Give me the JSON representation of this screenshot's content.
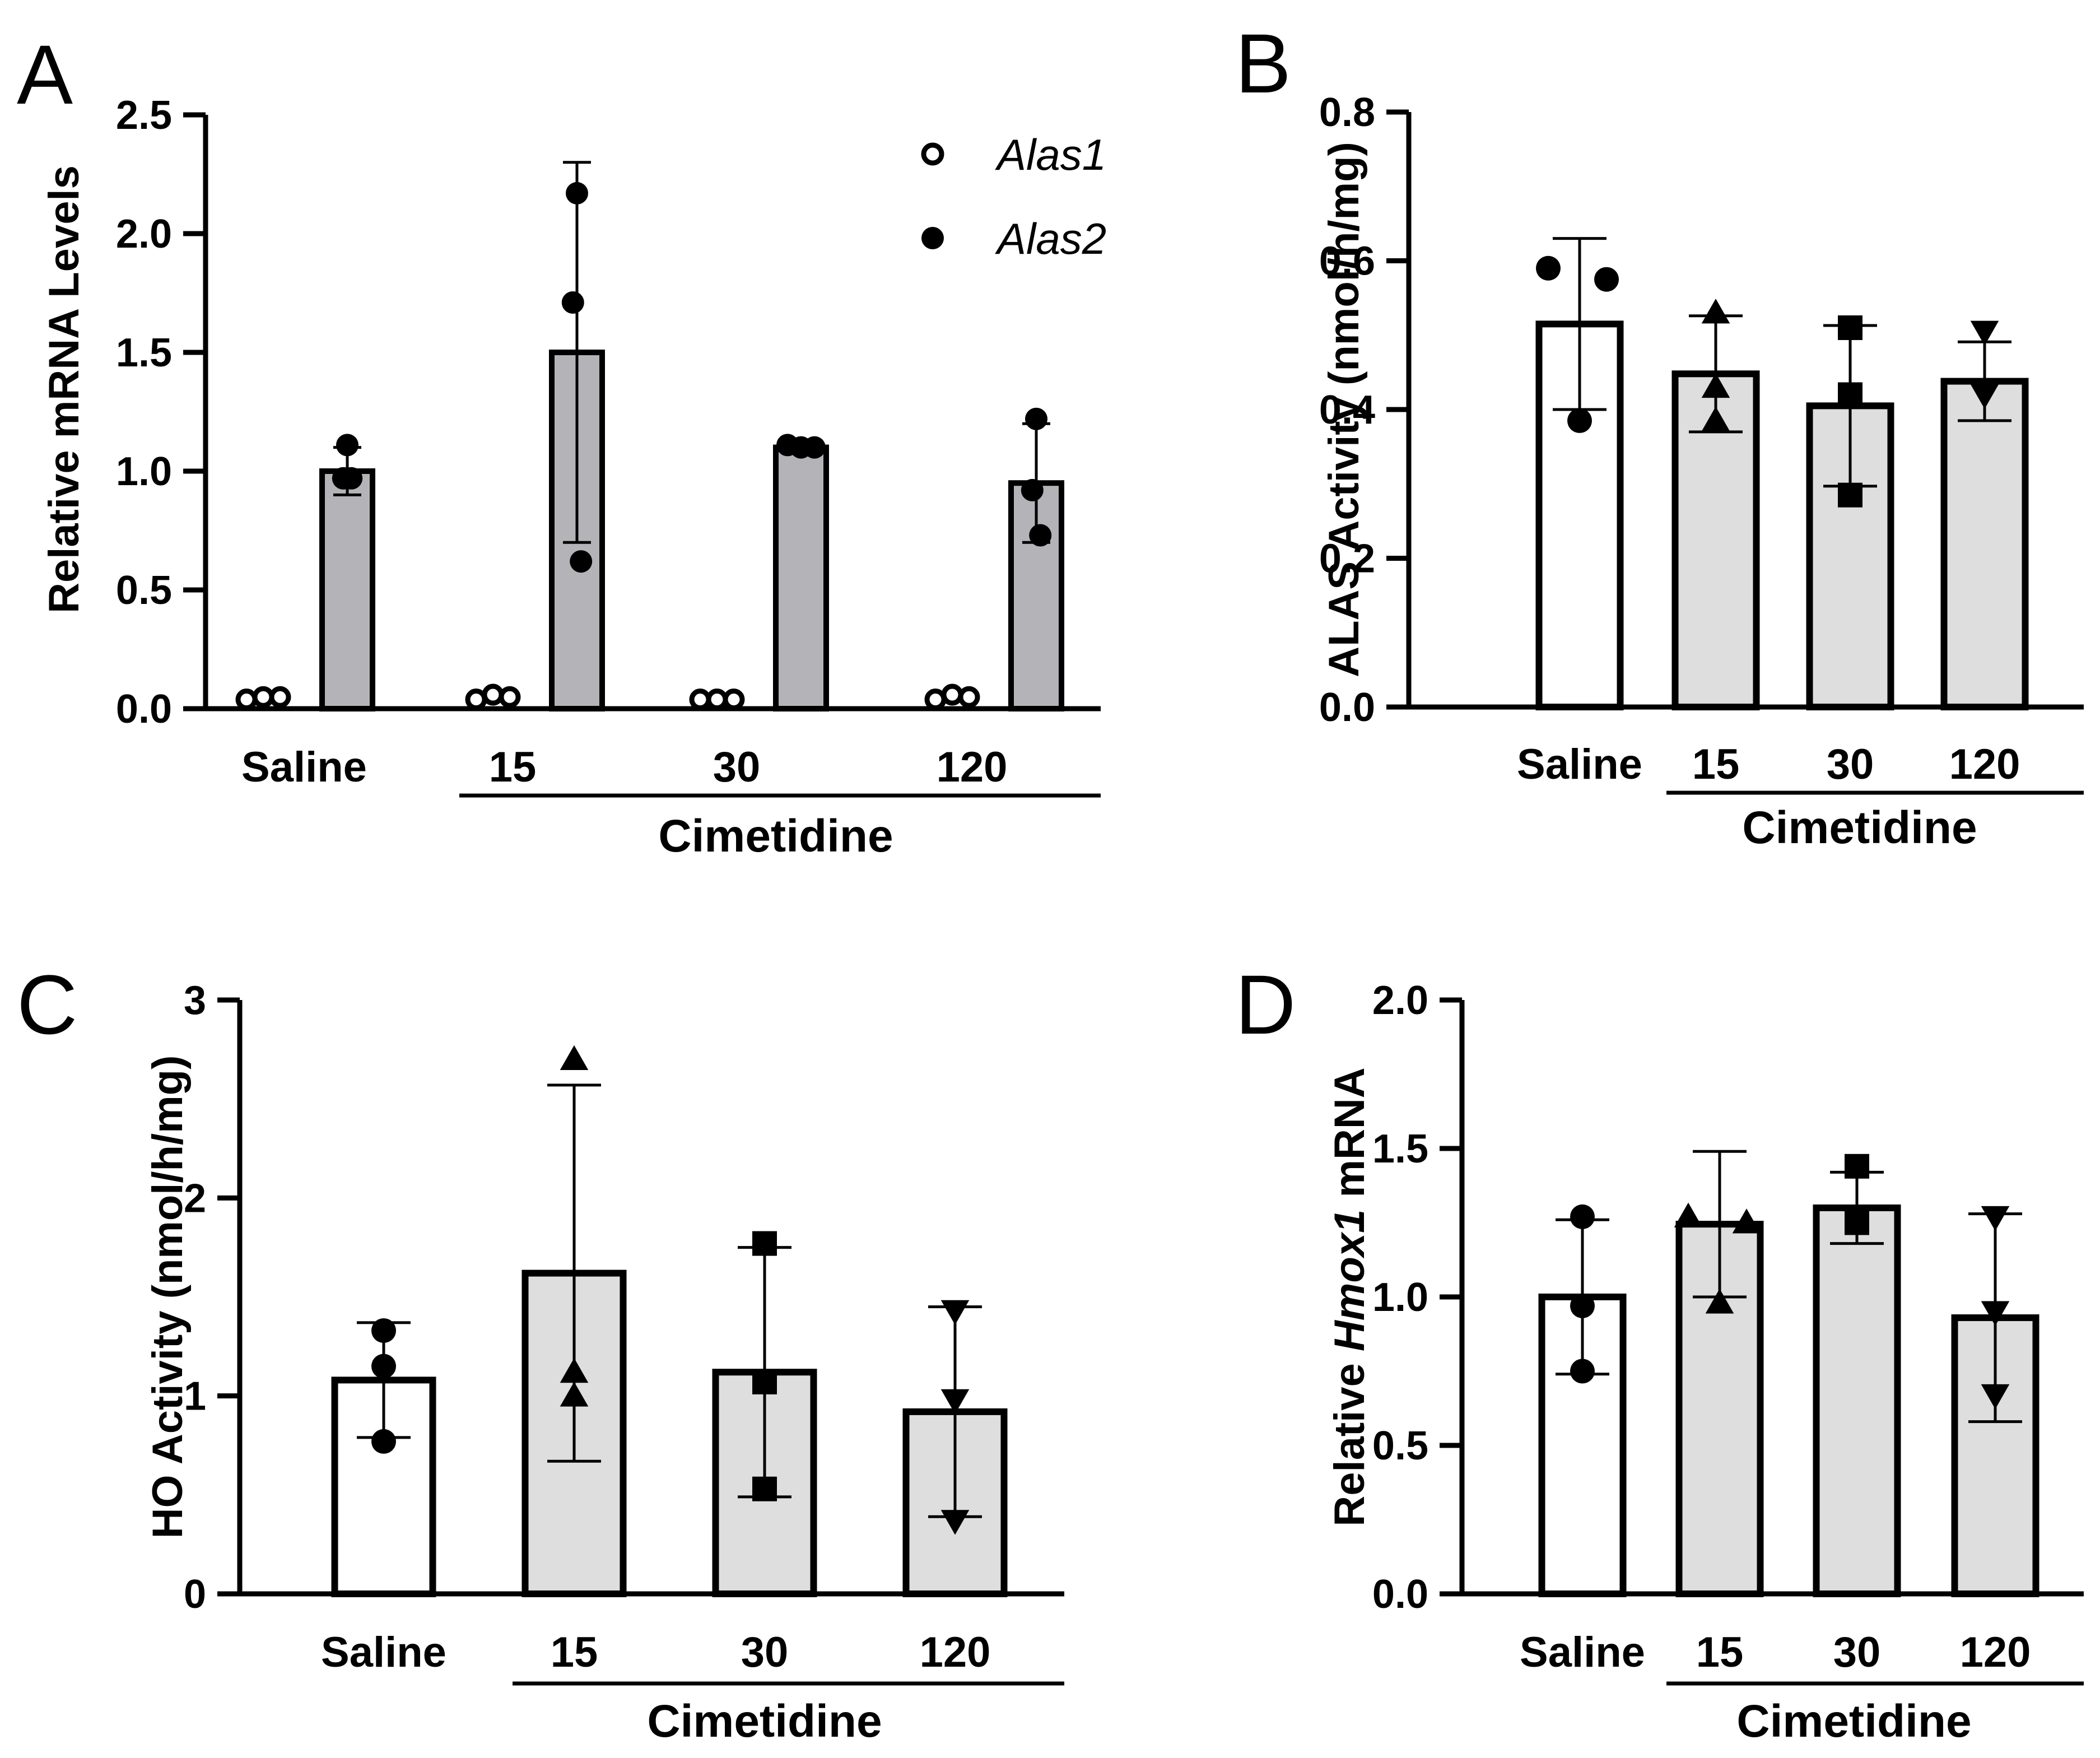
{
  "colors": {
    "open_bar": "#ffffff",
    "gray_bar": "#b4b4b8",
    "light_bar": "#dedede",
    "ink": "#000000"
  },
  "chart_data": [
    {
      "panel": "A",
      "type": "bar",
      "ylabel": "Relative mRNA Levels",
      "ylim": [
        0,
        2.5
      ],
      "yticks": [
        "0.0",
        "0.5",
        "1.0",
        "1.5",
        "2.0",
        "2.5"
      ],
      "yticks_values": [
        0,
        0.5,
        1.0,
        1.5,
        2.0,
        2.5
      ],
      "categories": [
        "Saline",
        "15",
        "30",
        "120"
      ],
      "group_label": "Cimetidine",
      "legend": [
        {
          "name": "Alas1",
          "marker": "open-circle"
        },
        {
          "name": "Alas2",
          "marker": "filled-circle"
        }
      ],
      "series": [
        {
          "name": "Alas1",
          "values": [
            0.03,
            0.03,
            0.02,
            0.03
          ],
          "sd": [
            0.01,
            0.01,
            0.005,
            0.01
          ],
          "points": [
            [
              0.02,
              0.03,
              0.03
            ],
            [
              0.02,
              0.04,
              0.03
            ],
            [
              0.02,
              0.02,
              0.02
            ],
            [
              0.02,
              0.04,
              0.03
            ]
          ]
        },
        {
          "name": "Alas2",
          "values": [
            1.0,
            1.5,
            1.1,
            0.95
          ],
          "sd": [
            0.1,
            0.8,
            0.02,
            0.25
          ],
          "points": [
            [
              1.11,
              0.97,
              0.97
            ],
            [
              2.17,
              1.71,
              0.62
            ],
            [
              1.1,
              1.11,
              1.1
            ],
            [
              1.22,
              0.92,
              0.73
            ]
          ]
        }
      ]
    },
    {
      "panel": "B",
      "type": "bar",
      "ylabel": "ALAS Activity (nmol/h/mg)",
      "ylim": [
        0,
        0.8
      ],
      "yticks": [
        "0.0",
        "0.2",
        "0.4",
        "0.6",
        "0.8"
      ],
      "yticks_values": [
        0,
        0.2,
        0.4,
        0.6,
        0.8
      ],
      "categories": [
        "Saline",
        "15",
        "30",
        "120"
      ],
      "group_label": "Cimetidine",
      "markers": [
        "circle",
        "triangle-up",
        "square",
        "triangle-down"
      ],
      "values": [
        0.515,
        0.448,
        0.405,
        0.438
      ],
      "sd": [
        0.115,
        0.078,
        0.108,
        0.053
      ],
      "points": [
        [
          0.59,
          0.575,
          0.385
        ],
        [
          0.53,
          0.43,
          0.385
        ],
        [
          0.51,
          0.42,
          0.285
        ],
        [
          0.505,
          0.42,
          0.42
        ]
      ]
    },
    {
      "panel": "C",
      "type": "bar",
      "ylabel": "HO Activity (nmol/h/mg)",
      "ylim": [
        0,
        3
      ],
      "yticks": [
        "0",
        "1",
        "2",
        "3"
      ],
      "yticks_values": [
        0,
        1,
        2,
        3
      ],
      "categories": [
        "Saline",
        "15",
        "30",
        "120"
      ],
      "group_label": "Cimetidine",
      "markers": [
        "circle",
        "triangle-up",
        "square",
        "triangle-down"
      ],
      "values": [
        1.08,
        1.62,
        1.12,
        0.92
      ],
      "sd": [
        0.29,
        0.95,
        0.63,
        0.53
      ],
      "points": [
        [
          1.33,
          1.15,
          0.77
        ],
        [
          2.7,
          1.12,
          1.0
        ],
        [
          1.77,
          1.07,
          0.53
        ],
        [
          1.43,
          0.98,
          0.37
        ]
      ]
    },
    {
      "panel": "D",
      "type": "bar",
      "ylabel_parts": [
        "Relative ",
        "Hmox1",
        " mRNA"
      ],
      "ylim": [
        0,
        2.0
      ],
      "yticks": [
        "0.0",
        "0.5",
        "1.0",
        "1.5",
        "2.0"
      ],
      "yticks_values": [
        0,
        0.5,
        1.0,
        1.5,
        2.0
      ],
      "categories": [
        "Saline",
        "15",
        "30",
        "120"
      ],
      "group_label": "Cimetidine",
      "markers": [
        "circle",
        "triangle-up",
        "square",
        "triangle-down"
      ],
      "values": [
        1.0,
        1.245,
        1.3,
        0.93
      ],
      "sd": [
        0.26,
        0.245,
        0.12,
        0.35
      ],
      "points": [
        [
          1.27,
          0.97,
          0.75
        ],
        [
          1.27,
          1.25,
          0.98
        ],
        [
          1.44,
          1.25,
          1.25
        ],
        [
          1.27,
          0.95,
          0.67
        ]
      ]
    }
  ]
}
